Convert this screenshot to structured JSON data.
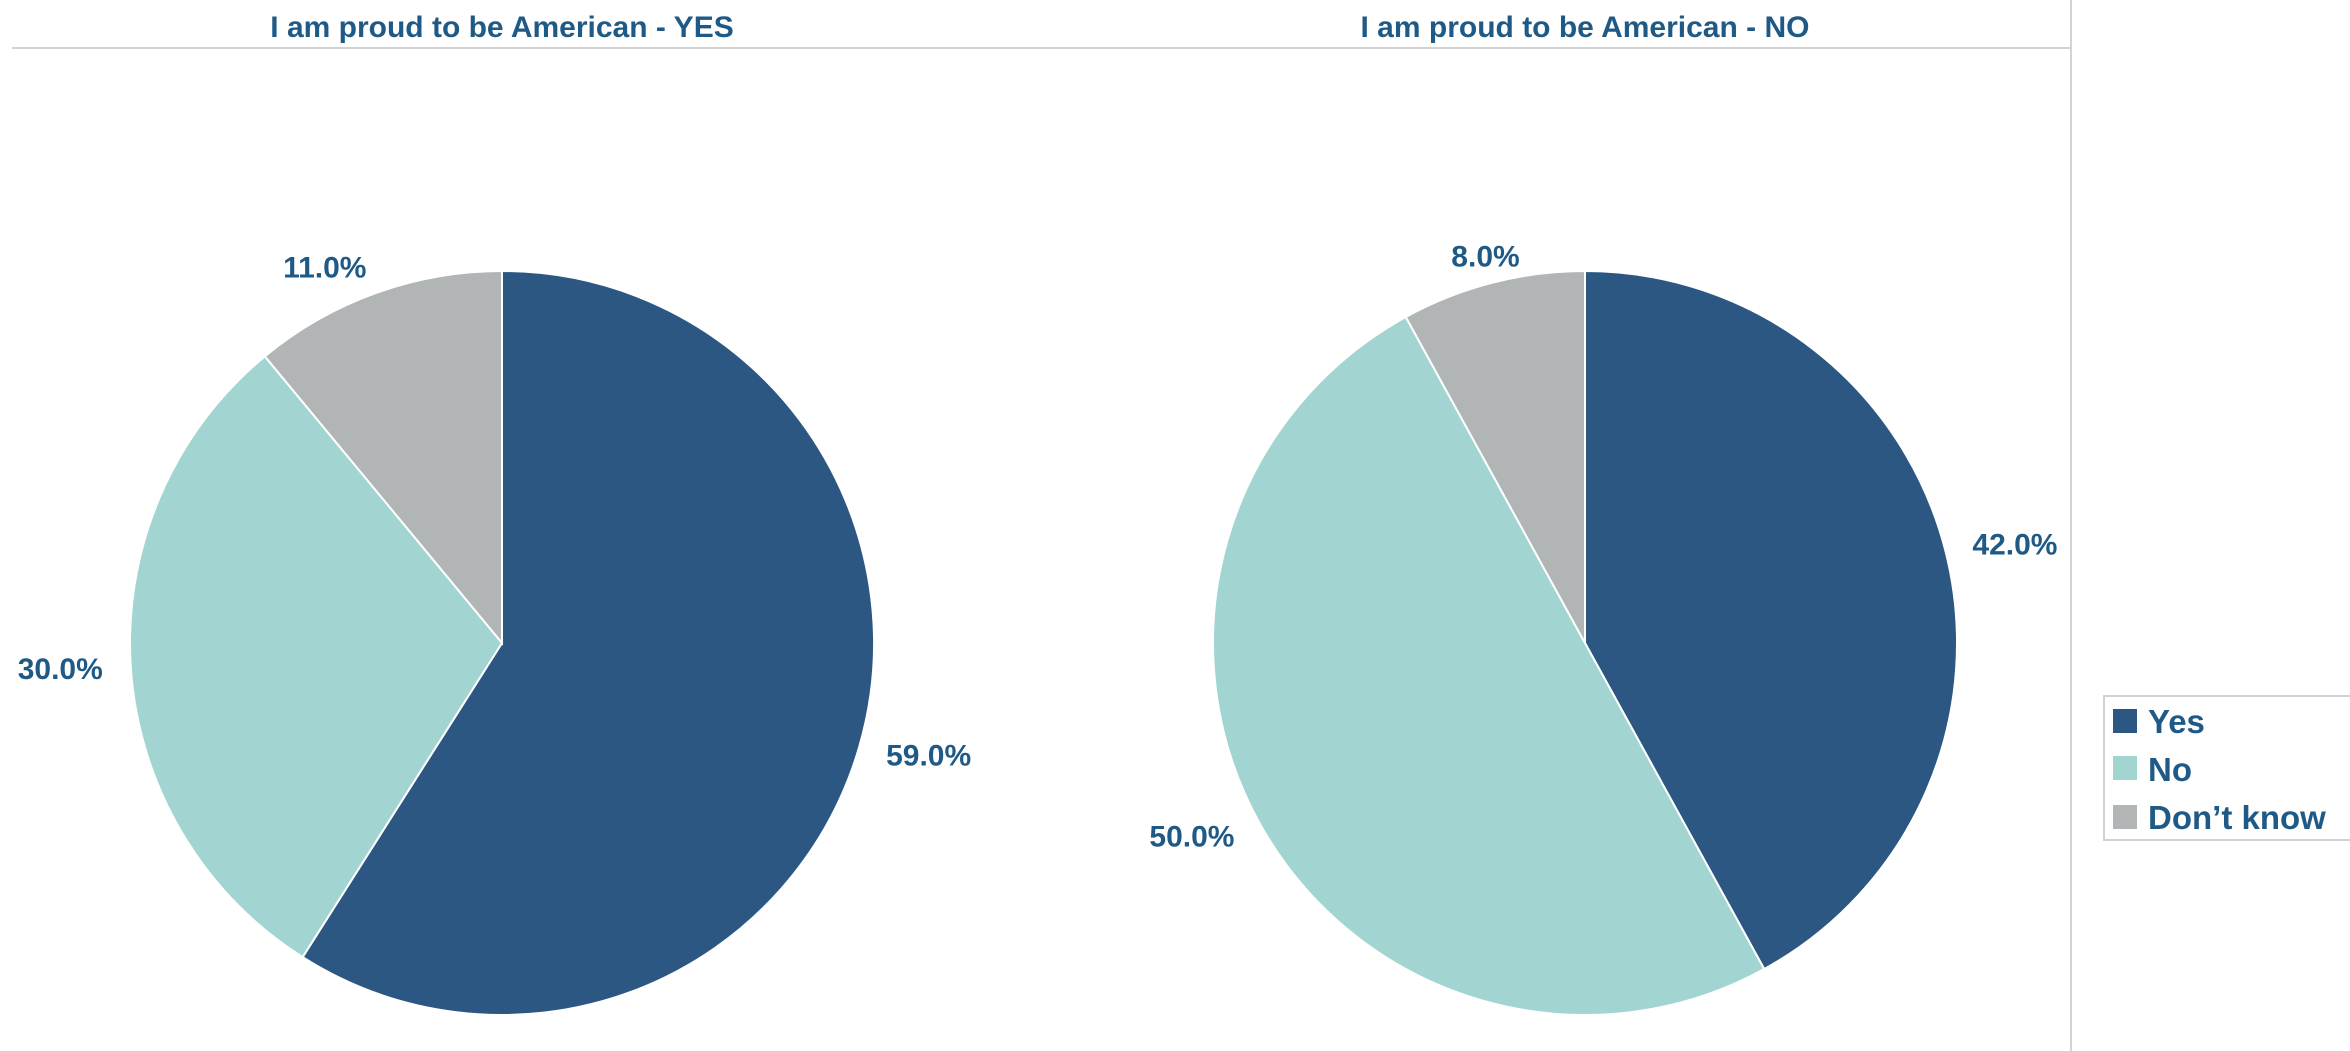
{
  "theme": {
    "text_color": "#1f5a86",
    "divider_color": "#d3d3d3",
    "slice_border_color": "#ffffff"
  },
  "legend": {
    "items": [
      {
        "label": "Yes",
        "color": "#2c5783"
      },
      {
        "label": "No",
        "color": "#a2d5d1"
      },
      {
        "label": "Don’t know",
        "color": "#b1b5b6"
      }
    ],
    "placement": "right"
  },
  "chart_data": [
    {
      "type": "pie",
      "title": "I am proud to be American - YES",
      "categories": [
        "Yes",
        "No",
        "Don’t know"
      ],
      "values": [
        59.0,
        30.0,
        11.0
      ],
      "labels": [
        "59.0%",
        "30.0%",
        "11.0%"
      ],
      "colors": [
        "#2c5783",
        "#a2d5d1",
        "#b1b5b6"
      ],
      "start": "12 o'clock",
      "direction": "clockwise"
    },
    {
      "type": "pie",
      "title": "I am proud to be American - NO",
      "categories": [
        "Yes",
        "No",
        "Don’t know"
      ],
      "values": [
        42.0,
        50.0,
        8.0
      ],
      "labels": [
        "42.0%",
        "50.0%",
        "8.0%"
      ],
      "colors": [
        "#2c5783",
        "#a2d5d1",
        "#b1b5b6"
      ],
      "start": "12 o'clock",
      "direction": "clockwise"
    }
  ]
}
